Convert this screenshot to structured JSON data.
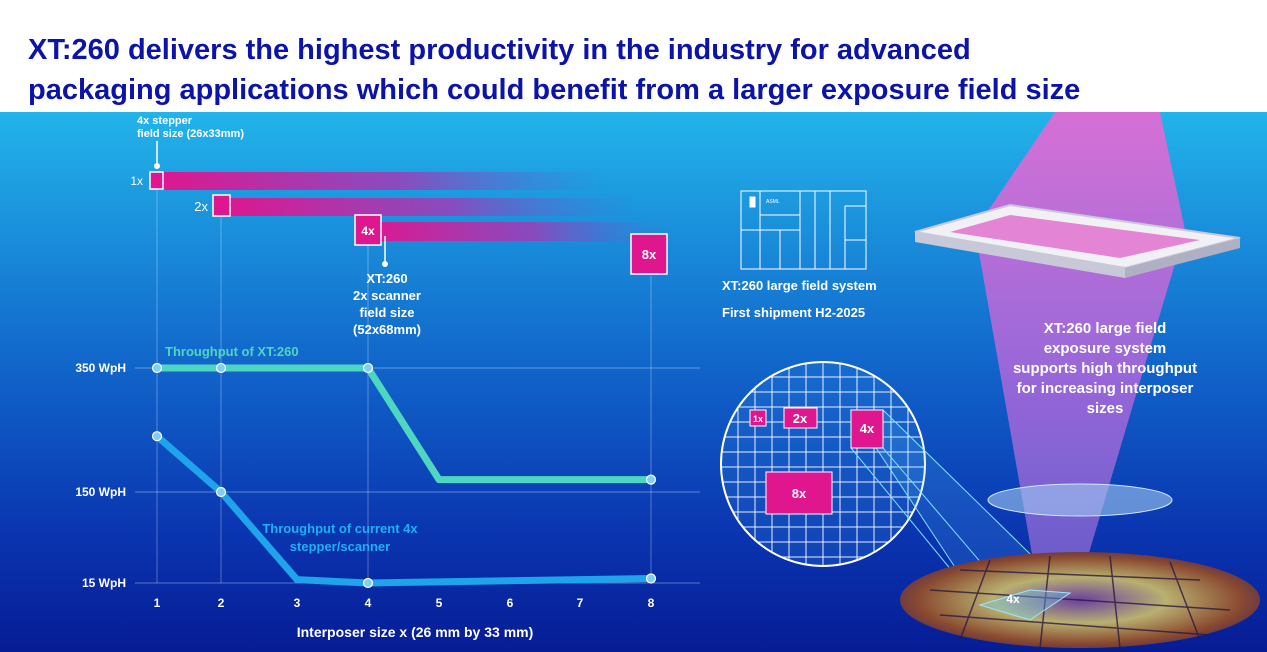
{
  "title": {
    "line1": "XT:260 delivers the highest productivity in the industry for advanced",
    "line2": "packaging applications which could benefit from a larger exposure field size"
  },
  "chart_data": {
    "type": "line",
    "xlabel": "Interposer size x (26 mm by 33 mm)",
    "ylabel": "",
    "x": [
      1,
      2,
      3,
      4,
      5,
      6,
      7,
      8
    ],
    "y_tick_labels": [
      "350 WpH",
      "150 WpH",
      "15 WpH"
    ],
    "series": [
      {
        "name": "Throughput of XT:260",
        "label_line1": "Throughput of XT:260",
        "color": "#4fd6c0",
        "points": [
          [
            1,
            350
          ],
          [
            2,
            350
          ],
          [
            4,
            350
          ],
          [
            5,
            170
          ],
          [
            8,
            170
          ]
        ],
        "markers": [
          1,
          2,
          4,
          8
        ]
      },
      {
        "name": "Throughput of current 4x stepper/scanner",
        "label_line1": "Throughput of current 4x",
        "label_line2": "stepper/scanner",
        "color": "#1fa3ea",
        "points": [
          [
            1,
            240
          ],
          [
            2,
            150
          ],
          [
            3,
            20
          ],
          [
            4,
            15
          ],
          [
            8,
            10
          ]
        ],
        "markers": [
          1,
          2,
          4,
          8
        ]
      }
    ],
    "field_bars": [
      {
        "label": "1x",
        "x": 1
      },
      {
        "label": "2x",
        "x": 2
      },
      {
        "label": "4x",
        "x": 4
      },
      {
        "label": "8x",
        "x": 8
      }
    ],
    "annotations": {
      "stepper": {
        "line1": "4x stepper",
        "line2": "field size (26x33mm)"
      },
      "scanner": {
        "line1": "XT:260",
        "line2": "2x scanner",
        "line3": "field size",
        "line4": "(52x68mm)"
      }
    },
    "grid": true
  },
  "system": {
    "line1": "XT:260 large field system",
    "line2": "First shipment H2-2025",
    "logo": "ASML"
  },
  "wafer_labels": [
    "1x",
    "2x",
    "4x",
    "8x"
  ],
  "exposure_text": {
    "line1": "XT:260 large field",
    "line2": "exposure system",
    "line3": "supports high throughput",
    "line4": "for increasing interposer",
    "line5": "sizes"
  },
  "wafer_field_label": "4x",
  "colors": {
    "title": "#0b13a8",
    "magenta": "#e0168f",
    "teal": "#4fd6c0",
    "blue": "#1fa3ea"
  }
}
